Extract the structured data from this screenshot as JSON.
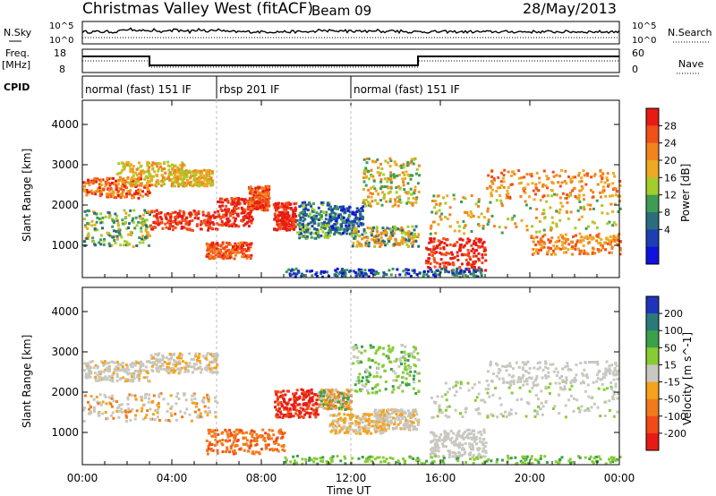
{
  "header": {
    "title": "Christmas Valley West (fitACF)",
    "beam": "Beam 09",
    "date": "28/May/2013"
  },
  "top_panels": {
    "nsky_label": "N.Sky",
    "nsearch_label": "N.Search",
    "scale_left_top": "10^5",
    "scale_left_bottom": "10^0",
    "scale_right_top": "10^5",
    "scale_right_bottom": "10^0",
    "freq_label": "Freq.",
    "freq_unit": "[MHz]",
    "freq_ticks": [
      "18",
      "8"
    ],
    "nave_label": "Nave",
    "nave_ticks": [
      "60",
      "0"
    ],
    "cpid_label": "CPID",
    "cpid_segments": [
      {
        "label": "normal (fast) 151 IF",
        "start_hour": 0,
        "end_hour": 6
      },
      {
        "label": "rbsp 201 IF",
        "start_hour": 6,
        "end_hour": 12
      },
      {
        "label": "normal (fast) 151 IF",
        "start_hour": 12,
        "end_hour": 24
      }
    ]
  },
  "chart_data": [
    {
      "type": "heatmap",
      "name": "power",
      "ylabel": "Slant Range [km]",
      "ylim": [
        200,
        4600
      ],
      "yticks": [
        "4000",
        "3000",
        "2000",
        "1000"
      ],
      "colorbar_label": "Power [dB]",
      "colorbar_ticks": [
        "28",
        "24",
        "20",
        "16",
        "12",
        "8",
        "4"
      ],
      "colors": [
        "#e81b14",
        "#f2501a",
        "#f2841d",
        "#f0a922",
        "#a3cd2c",
        "#3f9c53",
        "#2b6d7d",
        "#1c3fb4",
        "#1111dd"
      ]
    },
    {
      "type": "heatmap",
      "name": "velocity",
      "ylabel": "Slant Range [km]",
      "ylim": [
        200,
        4600
      ],
      "yticks": [
        "4000",
        "3000",
        "2000",
        "1000"
      ],
      "colorbar_label": "Velocity [m s^-1]",
      "colorbar_ticks": [
        "200",
        "100",
        "50",
        "15",
        "-15",
        "-50",
        "-100",
        "-200"
      ],
      "colors": [
        "#2233bb",
        "#2a7a7a",
        "#3aa14a",
        "#88cc33",
        "#c8c8c0",
        "#f5a31c",
        "#f27a1d",
        "#f04a18",
        "#e81b14"
      ]
    }
  ],
  "x_axis": {
    "ticks": [
      "00:00",
      "04:00",
      "08:00",
      "12:00",
      "16:00",
      "20:00",
      "00:00"
    ],
    "label": "Time UT"
  }
}
